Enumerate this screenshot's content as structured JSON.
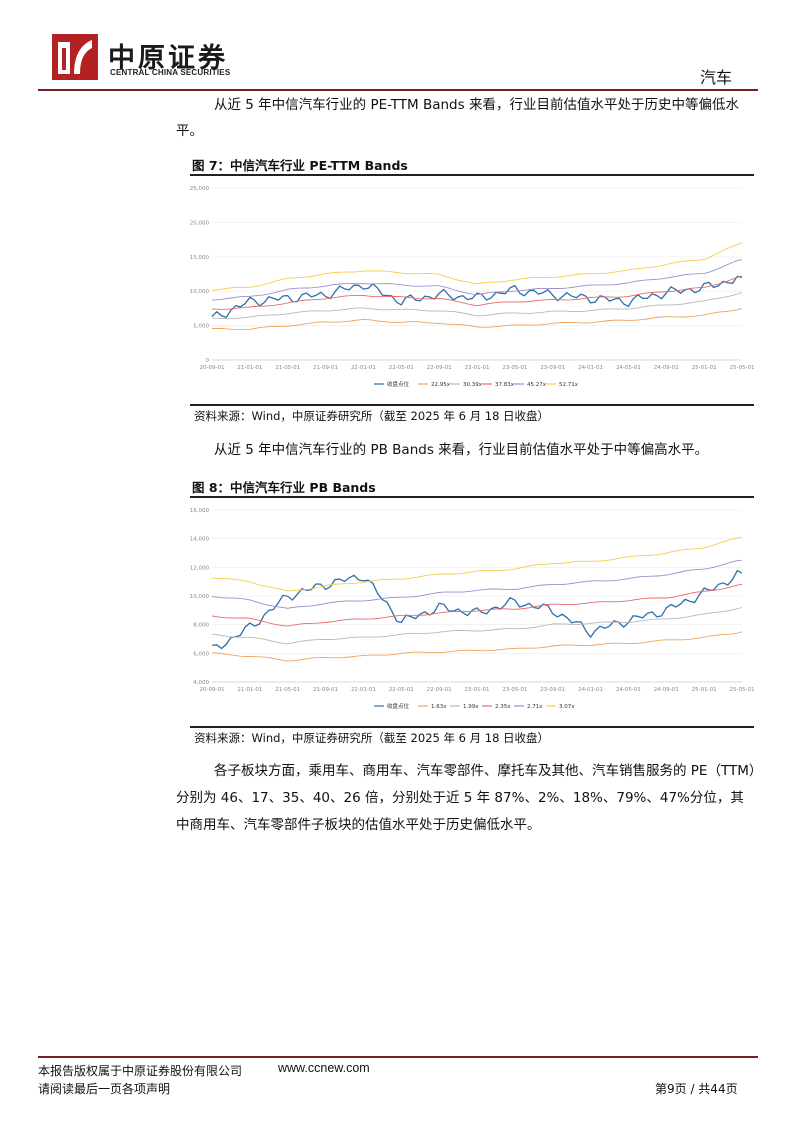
{
  "header": {
    "logo_cn": "中原证券",
    "logo_en": "CENTRAL CHINA SECURITIES",
    "sector": "汽车"
  },
  "para1": "从近 5 年中信汽车行业的 PE-TTM Bands 来看，行业目前估值水平处于历史中等偏低水平。",
  "fig7": {
    "title": "图 7：中信汽车行业 PE-TTM Bands",
    "source": "资料来源：Wind，中原证券研究所（截至 2025 年 6 月 18 日收盘）"
  },
  "para2": "从近 5 年中信汽车行业的 PB Bands 来看，行业目前估值水平处于中等偏高水平。",
  "fig8": {
    "title": "图 8：中信汽车行业 PB Bands",
    "source": "资料来源：Wind，中原证券研究所（截至 2025 年 6 月 18 日收盘）"
  },
  "para3": "各子板块方面，乘用车、商用车、汽车零部件、摩托车及其他、汽车销售服务的 PE（TTM）分别为 46、17、35、40、26 倍，分别处于近 5 年 87%、2%、18%、79%、47%分位，其中商用车、汽车零部件子板块的估值水平处于历史偏低水平。",
  "footer": {
    "copyright": "本报告版权属于中原证券股份有限公司",
    "url": "www.ccnew.com",
    "disclaimer": "请阅读最后一页各项声明",
    "page": "第9页  /  共44页"
  },
  "chart_data": [
    {
      "type": "line",
      "ylim": [
        0,
        25000
      ],
      "yticks": [
        "0",
        "5,000",
        "10,000",
        "15,000",
        "20,000",
        "25,000"
      ],
      "categories": [
        "20-09-01",
        "21-01-01",
        "21-05-01",
        "21-09-01",
        "22-01-01",
        "22-05-01",
        "22-09-01",
        "23-01-01",
        "23-05-01",
        "23-09-01",
        "24-01-01",
        "24-05-01",
        "24-09-01",
        "25-01-01",
        "25-05-01"
      ],
      "colors": [
        "#2f6fa8",
        "#f0a35a",
        "#b8b8b8",
        "#e86b6b",
        "#9b8fd0",
        "#f5cc4a"
      ],
      "series": [
        {
          "name": "收盘点位",
          "values": [
            6000,
            8500,
            9000,
            9500,
            11000,
            8500,
            9500,
            9000,
            10200,
            9500,
            9000,
            8500,
            9800,
            10500,
            12000
          ]
        },
        {
          "name": "22.95x",
          "values": [
            4500,
            4500,
            5000,
            5500,
            5800,
            5500,
            5400,
            4800,
            5000,
            5300,
            5500,
            5800,
            6200,
            6500,
            7500
          ]
        },
        {
          "name": "30.39x",
          "values": [
            6000,
            6200,
            6800,
            7200,
            7500,
            7300,
            7200,
            6500,
            6800,
            7000,
            7200,
            7500,
            8000,
            8500,
            9800
          ]
        },
        {
          "name": "37.83x",
          "values": [
            7400,
            7600,
            8300,
            9000,
            9400,
            9100,
            8900,
            8000,
            8500,
            8700,
            9000,
            9300,
            10000,
            10500,
            12200
          ]
        },
        {
          "name": "45.27x",
          "values": [
            8800,
            9200,
            10200,
            10800,
            11200,
            10900,
            10700,
            9500,
            10100,
            10400,
            10800,
            11200,
            12000,
            12600,
            14600
          ]
        },
        {
          "name": "52.71x",
          "values": [
            10200,
            10600,
            11800,
            12500,
            13000,
            12700,
            12400,
            11000,
            11700,
            12100,
            12500,
            13000,
            13900,
            14700,
            17000
          ]
        }
      ]
    },
    {
      "type": "line",
      "ylim": [
        4000,
        16000
      ],
      "yticks": [
        "4,000",
        "6,000",
        "8,000",
        "10,000",
        "12,000",
        "14,000",
        "16,000"
      ],
      "categories": [
        "20-09-01",
        "21-01-01",
        "21-05-01",
        "21-09-01",
        "22-01-01",
        "22-05-01",
        "22-09-01",
        "23-01-01",
        "23-05-01",
        "23-09-01",
        "24-01-01",
        "24-05-01",
        "24-09-01",
        "25-01-01",
        "25-05-01"
      ],
      "colors": [
        "#2f6fa8",
        "#f0a35a",
        "#b8b8b8",
        "#e86b6b",
        "#9b8fd0",
        "#f5cc4a"
      ],
      "series": [
        {
          "name": "收盘点位",
          "values": [
            6200,
            7800,
            10000,
            10800,
            11400,
            8200,
            9200,
            8800,
            9600,
            9000,
            7500,
            8300,
            9000,
            10200,
            11600
          ]
        },
        {
          "name": "1.63x",
          "values": [
            6000,
            5800,
            5500,
            5700,
            5800,
            6000,
            6100,
            6200,
            6300,
            6500,
            6600,
            6700,
            6900,
            7100,
            7500
          ]
        },
        {
          "name": "1.99x",
          "values": [
            7300,
            7100,
            6700,
            7000,
            7100,
            7300,
            7500,
            7600,
            7700,
            8000,
            8100,
            8200,
            8400,
            8700,
            9200
          ]
        },
        {
          "name": "2.35x",
          "values": [
            8600,
            8400,
            7900,
            8200,
            8400,
            8600,
            8800,
            9000,
            9100,
            9400,
            9500,
            9700,
            9900,
            10300,
            10800
          ]
        },
        {
          "name": "2.71x",
          "values": [
            10000,
            9700,
            9100,
            9500,
            9700,
            9900,
            10200,
            10400,
            10500,
            10800,
            11000,
            11200,
            11500,
            11900,
            12500
          ]
        },
        {
          "name": "3.07x",
          "values": [
            11300,
            11000,
            10300,
            10700,
            11000,
            11200,
            11500,
            11700,
            11900,
            12300,
            12400,
            12700,
            13000,
            13400,
            14100
          ]
        }
      ]
    }
  ]
}
